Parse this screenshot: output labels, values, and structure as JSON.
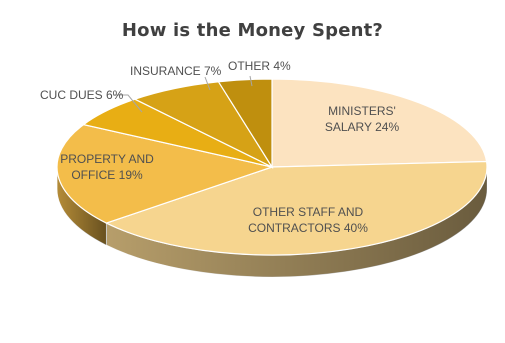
{
  "chart_data": {
    "type": "pie",
    "title": "How is the Money Spent?",
    "three_d": true,
    "slices": [
      {
        "name": "MINISTERS' SALARY",
        "value": 24,
        "label_lines": [
          "MINISTERS'",
          "SALARY 24%"
        ],
        "color": "#FCE3C0"
      },
      {
        "name": "OTHER STAFF AND CONTRACTORS",
        "value": 40,
        "label_lines": [
          "OTHER STAFF AND",
          "CONTRACTORS 40%"
        ],
        "color": "#F6D58F"
      },
      {
        "name": "PROPERTY AND OFFICE",
        "value": 19,
        "label_lines": [
          "PROPERTY AND",
          "OFFICE 19%"
        ],
        "color": "#F3BD4A"
      },
      {
        "name": "CUC DUES",
        "value": 6,
        "label_lines": [
          "CUC DUES 6%"
        ],
        "color": "#E8AE14"
      },
      {
        "name": "INSURANCE",
        "value": 7,
        "label_lines": [
          "INSURANCE 7%"
        ],
        "color": "#D6A216"
      },
      {
        "name": "OTHER",
        "value": 4,
        "label_lines": [
          "OTHER 4%"
        ],
        "color": "#BF8F0E"
      }
    ]
  }
}
